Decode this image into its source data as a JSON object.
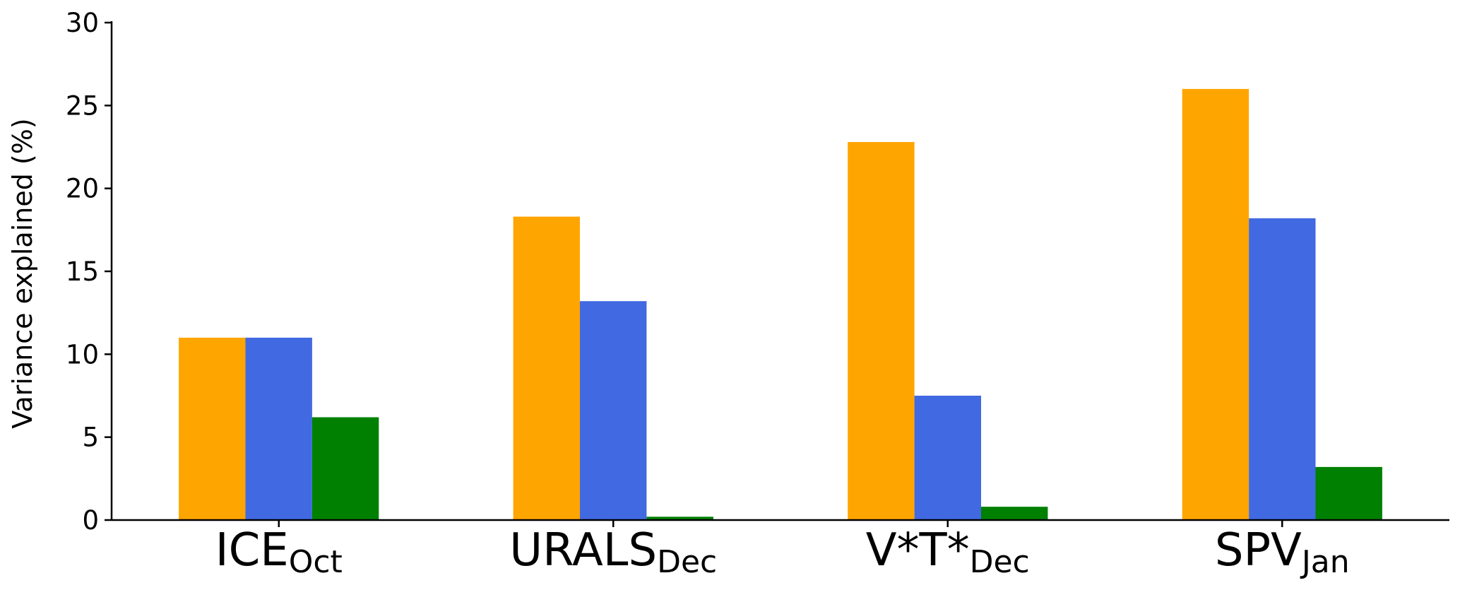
{
  "chart_data": {
    "type": "bar",
    "title": "",
    "xlabel": "",
    "ylabel": "Variance explained (%)",
    "ylim": [
      0,
      30
    ],
    "yticks": [
      0,
      5,
      10,
      15,
      20,
      25,
      30
    ],
    "categories": [
      {
        "main": "ICE",
        "sub": "Oct"
      },
      {
        "main": "URALS",
        "sub": "Dec"
      },
      {
        "main": "V*T*",
        "sub": "Dec"
      },
      {
        "main": "SPV",
        "sub": "Jan"
      }
    ],
    "series": [
      {
        "color": "#FFA500",
        "values": [
          11.0,
          18.3,
          22.8,
          26.0
        ]
      },
      {
        "color": "#4169E1",
        "values": [
          11.0,
          13.2,
          7.5,
          18.2
        ]
      },
      {
        "color": "#008000",
        "values": [
          6.2,
          0.2,
          0.8,
          3.2
        ]
      }
    ],
    "grid": false,
    "legend": "none"
  }
}
